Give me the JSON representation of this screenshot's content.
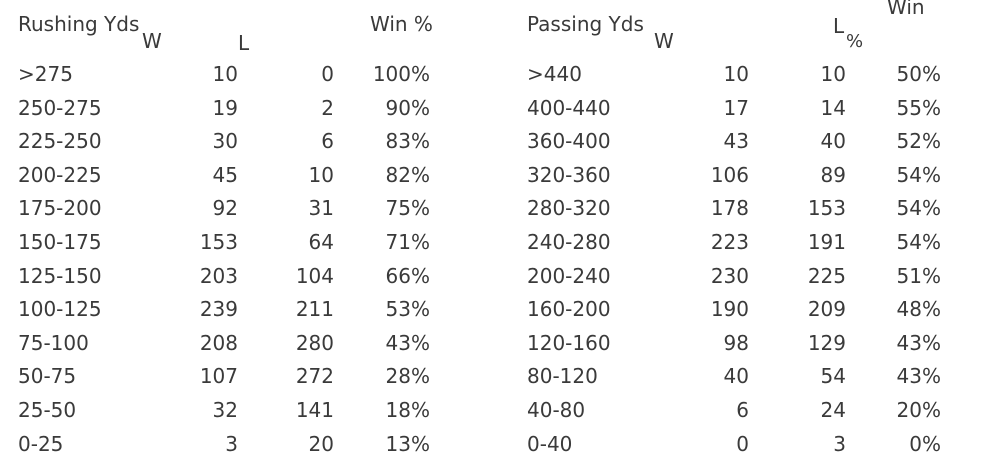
{
  "rushing": {
    "headers": {
      "label": "Rushing Yds",
      "w": "W",
      "l": "L",
      "pct": "Win %"
    },
    "rows": [
      {
        "range": ">275",
        "w": "10",
        "l": "0",
        "pct": "100%"
      },
      {
        "range": "250-275",
        "w": "19",
        "l": "2",
        "pct": "90%"
      },
      {
        "range": "225-250",
        "w": "30",
        "l": "6",
        "pct": "83%"
      },
      {
        "range": "200-225",
        "w": "45",
        "l": "10",
        "pct": "82%"
      },
      {
        "range": "175-200",
        "w": "92",
        "l": "31",
        "pct": "75%"
      },
      {
        "range": "150-175",
        "w": "153",
        "l": "64",
        "pct": "71%"
      },
      {
        "range": "125-150",
        "w": "203",
        "l": "104",
        "pct": "66%"
      },
      {
        "range": "100-125",
        "w": "239",
        "l": "211",
        "pct": "53%"
      },
      {
        "range": "75-100",
        "w": "208",
        "l": "280",
        "pct": "43%"
      },
      {
        "range": "50-75",
        "w": "107",
        "l": "272",
        "pct": "28%"
      },
      {
        "range": "25-50",
        "w": "32",
        "l": "141",
        "pct": "18%"
      },
      {
        "range": "0-25",
        "w": "3",
        "l": "20",
        "pct": "13%"
      }
    ]
  },
  "passing": {
    "headers": {
      "label": "Passing Yds",
      "w": "W",
      "l": "L",
      "pct_win": "Win",
      "pct_sign": "%"
    },
    "rows": [
      {
        "range": ">440",
        "w": "10",
        "l": "10",
        "pct": "50%"
      },
      {
        "range": "400-440",
        "w": "17",
        "l": "14",
        "pct": "55%"
      },
      {
        "range": "360-400",
        "w": "43",
        "l": "40",
        "pct": "52%"
      },
      {
        "range": "320-360",
        "w": "106",
        "l": "89",
        "pct": "54%"
      },
      {
        "range": "280-320",
        "w": "178",
        "l": "153",
        "pct": "54%"
      },
      {
        "range": "240-280",
        "w": "223",
        "l": "191",
        "pct": "54%"
      },
      {
        "range": "200-240",
        "w": "230",
        "l": "225",
        "pct": "51%"
      },
      {
        "range": "160-200",
        "w": "190",
        "l": "209",
        "pct": "48%"
      },
      {
        "range": "120-160",
        "w": "98",
        "l": "129",
        "pct": "43%"
      },
      {
        "range": "80-120",
        "w": "40",
        "l": "54",
        "pct": "43%"
      },
      {
        "range": "40-80",
        "w": "6",
        "l": "24",
        "pct": "20%"
      },
      {
        "range": "0-40",
        "w": "0",
        "l": "3",
        "pct": "0%"
      }
    ]
  }
}
